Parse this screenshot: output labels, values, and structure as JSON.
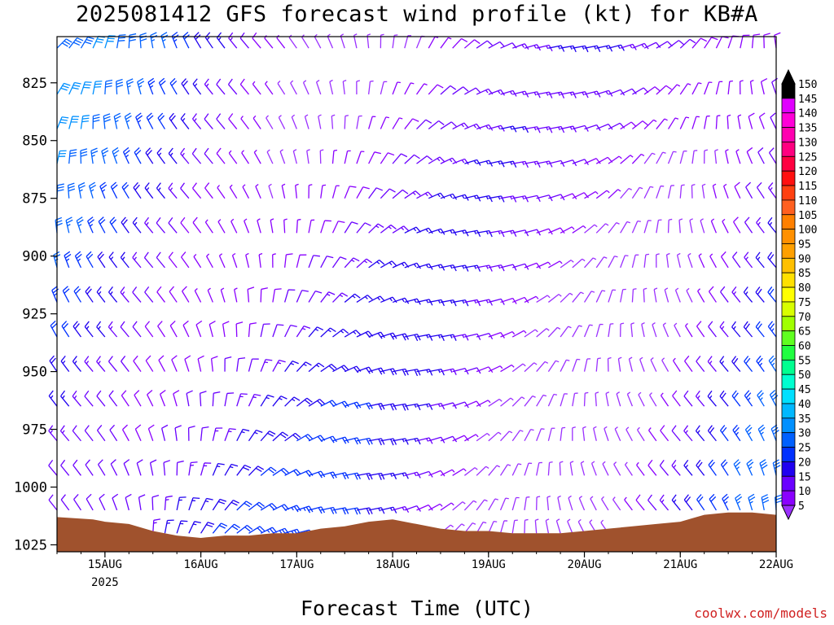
{
  "title": "2025081412 GFS forecast wind profile (kt) for KB#A",
  "xlabel": "Forecast Time (UTC)",
  "credit": "coolwx.com/models",
  "chart_data": {
    "type": "wind-barb-profile",
    "title": "2025081412 GFS forecast wind profile (kt) for KB#A",
    "xlabel": "Forecast Time (UTC)",
    "ylabel": "",
    "y_ticks": [
      825,
      850,
      875,
      900,
      925,
      950,
      975,
      1000,
      1025
    ],
    "ylim": [
      1028,
      805
    ],
    "x_ticks": [
      {
        "label": "15AUG",
        "sub": "2025",
        "hour": 12
      },
      {
        "label": "16AUG",
        "sub": "",
        "hour": 36
      },
      {
        "label": "17AUG",
        "sub": "",
        "hour": 60
      },
      {
        "label": "18AUG",
        "sub": "",
        "hour": 84
      },
      {
        "label": "19AUG",
        "sub": "",
        "hour": 108
      },
      {
        "label": "20AUG",
        "sub": "",
        "hour": 132
      },
      {
        "label": "21AUG",
        "sub": "",
        "hour": 156
      },
      {
        "label": "22AUG",
        "sub": "",
        "hour": 180
      }
    ],
    "xlim_hours": [
      0,
      180
    ],
    "time_step_hours": 3,
    "levels": [
      810,
      830,
      845,
      860,
      875,
      890,
      905,
      920,
      935,
      950,
      965,
      980,
      995,
      1010,
      1020
    ],
    "surface_pressure": [
      [
        0,
        1013
      ],
      [
        9,
        1014
      ],
      [
        12,
        1015
      ],
      [
        18,
        1016
      ],
      [
        24,
        1019
      ],
      [
        30,
        1021
      ],
      [
        36,
        1022
      ],
      [
        42,
        1021
      ],
      [
        48,
        1021
      ],
      [
        54,
        1020
      ],
      [
        60,
        1020
      ],
      [
        66,
        1018
      ],
      [
        72,
        1017
      ],
      [
        78,
        1015
      ],
      [
        84,
        1014
      ],
      [
        90,
        1016
      ],
      [
        96,
        1018
      ],
      [
        102,
        1019
      ],
      [
        108,
        1019
      ],
      [
        114,
        1020
      ],
      [
        120,
        1020
      ],
      [
        126,
        1020
      ],
      [
        132,
        1019
      ],
      [
        138,
        1018
      ],
      [
        144,
        1017
      ],
      [
        150,
        1016
      ],
      [
        156,
        1015
      ],
      [
        162,
        1012
      ],
      [
        168,
        1011
      ],
      [
        174,
        1011
      ],
      [
        180,
        1012
      ]
    ],
    "surface_color": "#a0522d",
    "colorbar": {
      "labels": [
        5,
        10,
        15,
        20,
        25,
        30,
        35,
        40,
        45,
        50,
        55,
        60,
        65,
        70,
        75,
        80,
        85,
        90,
        95,
        100,
        105,
        110,
        115,
        120,
        125,
        130,
        135,
        140,
        145,
        150
      ],
      "colors": [
        "#8a00ff",
        "#6a00ff",
        "#2000f0",
        "#0030ff",
        "#0060ff",
        "#0090ff",
        "#00b8ff",
        "#00e0ff",
        "#00ffd0",
        "#00ff90",
        "#20ff40",
        "#60ff20",
        "#a0ff00",
        "#d8ff00",
        "#ffff00",
        "#ffe000",
        "#ffc000",
        "#ffa000",
        "#ff9000",
        "#ff8000",
        "#ff6020",
        "#ff4010",
        "#ff1010",
        "#ff0040",
        "#ff0080",
        "#ff00b0",
        "#ff00d8",
        "#e000ff",
        "#000000"
      ],
      "under_color": "#9b30ff",
      "over_color": "#000000"
    }
  }
}
